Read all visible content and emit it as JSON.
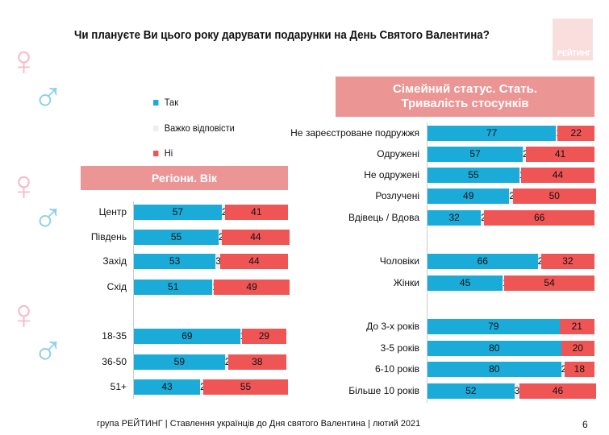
{
  "title": "Чи плануєте Ви цього року дарувати подарунки на День Святого Валентина?",
  "logo": "РЕЙТИНГ",
  "footer": "група РЕЙТИНГ | Ставлення українців до Дня святого Валентина | лютий 2021",
  "page_number": "6",
  "colors": {
    "yes": "#1aabd9",
    "hard": "#eeeeee",
    "no": "#f05555",
    "header": "#ec9595"
  },
  "chart_data": [
    {
      "type": "bar",
      "stacked": true,
      "orientation": "horizontal",
      "title": "Регіони. Вік",
      "legend": [
        "Так",
        "Важко відповісти",
        "Ні"
      ],
      "legend_position": "left",
      "categories": [
        "Центр",
        "Південь",
        "Захід",
        "Схід",
        "18-35",
        "36-50",
        "51+"
      ],
      "groups": [
        4,
        3
      ],
      "series": [
        {
          "name": "Так",
          "values": [
            57,
            55,
            53,
            51,
            69,
            59,
            43
          ]
        },
        {
          "name": "Важко відповісти",
          "values": [
            2,
            2,
            3,
            1,
            1,
            2,
            2
          ]
        },
        {
          "name": "Ні",
          "values": [
            41,
            44,
            44,
            49,
            29,
            38,
            55
          ]
        }
      ],
      "xlim": [
        0,
        100
      ]
    },
    {
      "type": "bar",
      "stacked": true,
      "orientation": "horizontal",
      "title": "Сімейний статус. Стать. Тривалість стосунків",
      "categories": [
        "Не зареєстроване подружжя",
        "Одружені",
        "Не одружені",
        "Розлучені",
        "Вдівець / Вдова",
        "Чоловіки",
        "Жінки",
        "До 3-х років",
        "3-5 років",
        "6-10 років",
        "Більше 10 років"
      ],
      "groups": [
        5,
        2,
        4
      ],
      "series": [
        {
          "name": "Так",
          "values": [
            77,
            57,
            55,
            49,
            32,
            66,
            45,
            79,
            80,
            80,
            52
          ]
        },
        {
          "name": "Важко відповісти",
          "values": [
            1,
            2,
            1,
            2,
            2,
            2,
            1,
            0,
            0,
            2,
            3
          ]
        },
        {
          "name": "Ні",
          "values": [
            22,
            41,
            44,
            50,
            66,
            32,
            54,
            21,
            20,
            18,
            46
          ]
        }
      ],
      "xlim": [
        0,
        100
      ]
    }
  ]
}
